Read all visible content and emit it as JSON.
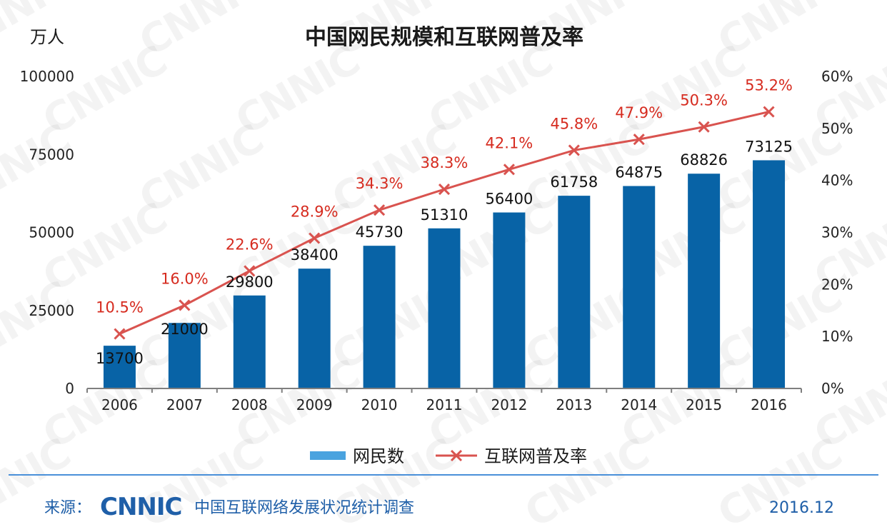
{
  "chart_data": {
    "type": "bar+line",
    "title": "中国网民规模和互联网普及率",
    "y_left_unit": "万人",
    "categories": [
      "2006",
      "2007",
      "2008",
      "2009",
      "2010",
      "2011",
      "2012",
      "2013",
      "2014",
      "2015",
      "2016"
    ],
    "series": [
      {
        "name": "网民数",
        "type": "bar",
        "axis": "left",
        "color": "#0863a6",
        "values": [
          13700,
          21000,
          29800,
          38400,
          45730,
          51310,
          56400,
          61758,
          64875,
          68826,
          73125
        ],
        "labels": [
          "13700",
          "21000",
          "29800",
          "38400",
          "45730",
          "51310",
          "56400",
          "61758",
          "64875",
          "68826",
          "73125"
        ]
      },
      {
        "name": "互联网普及率",
        "type": "line",
        "axis": "right",
        "color": "#d9534f",
        "label_color": "#d62b1f",
        "values": [
          10.5,
          16.0,
          22.6,
          28.9,
          34.3,
          38.3,
          42.1,
          45.8,
          47.9,
          50.3,
          53.2
        ],
        "labels": [
          "10.5%",
          "16.0%",
          "22.6%",
          "28.9%",
          "34.3%",
          "38.3%",
          "42.1%",
          "45.8%",
          "47.9%",
          "50.3%",
          "53.2%"
        ]
      }
    ],
    "y_left": {
      "range": [
        0,
        100000
      ],
      "ticks": [
        "0",
        "25000",
        "50000",
        "75000",
        "100000"
      ]
    },
    "y_right": {
      "range": [
        0,
        60
      ],
      "ticks": [
        "0%",
        "10%",
        "20%",
        "30%",
        "40%",
        "50%",
        "60%"
      ]
    },
    "grid": false,
    "legend": "bottom-center"
  },
  "footer": {
    "source_label": "来源：",
    "logo_text": "CNNIC",
    "source_text": "中国互联网络发展状况统计调查",
    "date": "2016.12"
  },
  "watermark": "CNNIC"
}
